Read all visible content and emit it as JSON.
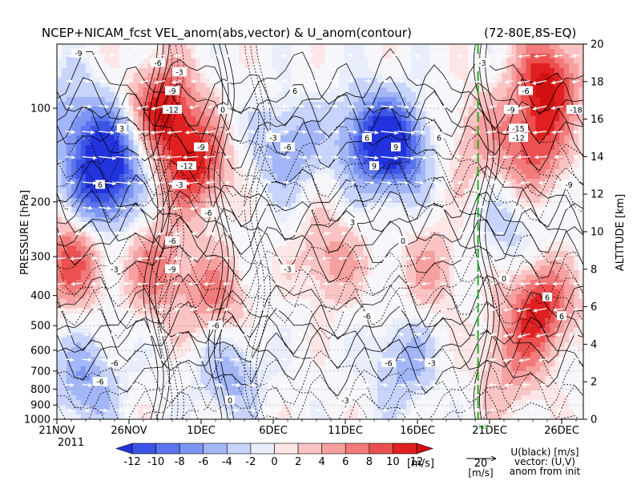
{
  "chart_data": {
    "type": "heatmap",
    "title": "NCEP+NICAM_fcst VEL_anom(abs,vector) & U_anom(contour)",
    "region": "(72-80E,8S-EQ)",
    "ylabel_left": "PRESSURE [hPa]",
    "ylabel_right": "ALTITUDE [km]",
    "x_ticks": [
      "21NOV",
      "26NOV",
      "1DEC",
      "6DEC",
      "11DEC",
      "16DEC",
      "21DEC",
      "26DEC"
    ],
    "x_year": "2011",
    "y_ticks_pressure": [
      "100",
      "200",
      "300",
      "400",
      "500",
      "600",
      "700",
      "800",
      "900",
      "1000"
    ],
    "y_ticks_altitude": [
      "0",
      "2",
      "4",
      "6",
      "8",
      "10",
      "12",
      "14",
      "16",
      "18",
      "20"
    ],
    "colorbar": {
      "ticks": [
        "-12",
        "-10",
        "-8",
        "-6",
        "-4",
        "-2",
        "0",
        "2",
        "4",
        "6",
        "8",
        "10",
        "12"
      ],
      "unit": "[m/s]",
      "colors": [
        "#2233dd",
        "#3c55e6",
        "#5c75ee",
        "#7d96f4",
        "#a3b6f8",
        "#c8d4fb",
        "#e9eefd",
        "#fde6e6",
        "#fbc4c4",
        "#f7a0a0",
        "#f27a7a",
        "#ec5050",
        "#e02020",
        "#d01010"
      ]
    },
    "init_marker": "init",
    "vector_legend": {
      "value": "20",
      "unit": "[m/s]"
    },
    "legend_notes": [
      "U(black) [m/s]",
      "vector: (U,V)",
      "anom from init"
    ],
    "fields": {
      "day_offset_of_x_ticks": [
        0,
        5,
        10,
        15,
        20,
        25,
        30,
        35
      ],
      "x_range_days": [
        0,
        36.5
      ],
      "altitude_range_km": [
        0,
        20
      ],
      "u_anom_blobs": [
        {
          "day": 3.5,
          "alt_km": 14.0,
          "value": -12
        },
        {
          "day": 3.0,
          "alt_km": 12.0,
          "value": -8
        },
        {
          "day": 1.0,
          "alt_km": 16.0,
          "value": -5
        },
        {
          "day": 7.5,
          "alt_km": 16.5,
          "value": 12
        },
        {
          "day": 9.5,
          "alt_km": 13.5,
          "value": 11
        },
        {
          "day": 7.0,
          "alt_km": 8.0,
          "value": 7
        },
        {
          "day": 11.0,
          "alt_km": 6.5,
          "value": 6
        },
        {
          "day": 1.0,
          "alt_km": 8.5,
          "value": 9
        },
        {
          "day": 2.0,
          "alt_km": 2.0,
          "value": -6
        },
        {
          "day": 12.0,
          "alt_km": 2.5,
          "value": -5
        },
        {
          "day": 16.0,
          "alt_km": 14.5,
          "value": -6
        },
        {
          "day": 23.5,
          "alt_km": 14.5,
          "value": -12
        },
        {
          "day": 21.5,
          "alt_km": 15.0,
          "value": -8
        },
        {
          "day": 19.0,
          "alt_km": 8.5,
          "value": 5
        },
        {
          "day": 26.0,
          "alt_km": 8.0,
          "value": 4
        },
        {
          "day": 24.0,
          "alt_km": 3.0,
          "value": -5
        },
        {
          "day": 29.0,
          "alt_km": 15.0,
          "value": 4
        },
        {
          "day": 34.0,
          "alt_km": 18.0,
          "value": 12
        },
        {
          "day": 33.0,
          "alt_km": 14.5,
          "value": 9
        },
        {
          "day": 33.5,
          "alt_km": 6.0,
          "value": 11
        },
        {
          "day": 31.5,
          "alt_km": 3.0,
          "value": 5
        },
        {
          "day": 31.5,
          "alt_km": 10.0,
          "value": -3
        }
      ],
      "contour_labels": [
        {
          "day": 1.5,
          "alt_km": 19.5,
          "text": "-9"
        },
        {
          "day": 4.5,
          "alt_km": 15.5,
          "text": "3"
        },
        {
          "day": 3.0,
          "alt_km": 12.5,
          "text": "6"
        },
        {
          "day": 8.5,
          "alt_km": 18.5,
          "text": "-3"
        },
        {
          "day": 7.0,
          "alt_km": 19.0,
          "text": "-6"
        },
        {
          "day": 8.0,
          "alt_km": 17.5,
          "text": "-9"
        },
        {
          "day": 8.0,
          "alt_km": 16.5,
          "text": "-12"
        },
        {
          "day": 10.0,
          "alt_km": 14.5,
          "text": "-9"
        },
        {
          "day": 9.0,
          "alt_km": 13.5,
          "text": "-12"
        },
        {
          "day": 8.5,
          "alt_km": 12.5,
          "text": "-3"
        },
        {
          "day": 10.5,
          "alt_km": 11.0,
          "text": "-6"
        },
        {
          "day": 8.0,
          "alt_km": 9.5,
          "text": "-6"
        },
        {
          "day": 8.0,
          "alt_km": 8.0,
          "text": "-9"
        },
        {
          "day": 11.0,
          "alt_km": 5.0,
          "text": "-6"
        },
        {
          "day": 4.0,
          "alt_km": 8.0,
          "text": "-3"
        },
        {
          "day": 4.0,
          "alt_km": 3.0,
          "text": "-6"
        },
        {
          "day": 3.0,
          "alt_km": 2.0,
          "text": "-6"
        },
        {
          "day": 12.0,
          "alt_km": 1.0,
          "text": "0"
        },
        {
          "day": 11.5,
          "alt_km": 16.5,
          "text": "0"
        },
        {
          "day": 15.0,
          "alt_km": 15.0,
          "text": "-3"
        },
        {
          "day": 16.0,
          "alt_km": 14.5,
          "text": "-6"
        },
        {
          "day": 16.5,
          "alt_km": 17.5,
          "text": "6"
        },
        {
          "day": 16.0,
          "alt_km": 8.0,
          "text": "-3"
        },
        {
          "day": 21.5,
          "alt_km": 15.0,
          "text": "6"
        },
        {
          "day": 22.0,
          "alt_km": 13.5,
          "text": "9"
        },
        {
          "day": 23.5,
          "alt_km": 14.5,
          "text": "9"
        },
        {
          "day": 26.5,
          "alt_km": 15.0,
          "text": "6"
        },
        {
          "day": 20.5,
          "alt_km": 10.5,
          "text": "3"
        },
        {
          "day": 24.0,
          "alt_km": 9.5,
          "text": "0"
        },
        {
          "day": 21.5,
          "alt_km": 5.5,
          "text": "-6"
        },
        {
          "day": 23.0,
          "alt_km": 3.0,
          "text": "-6"
        },
        {
          "day": 20.0,
          "alt_km": 1.0,
          "text": "-3"
        },
        {
          "day": 26.0,
          "alt_km": 3.0,
          "text": "-3"
        },
        {
          "day": 32.5,
          "alt_km": 17.5,
          "text": "-6"
        },
        {
          "day": 31.5,
          "alt_km": 16.5,
          "text": "-9"
        },
        {
          "day": 32.0,
          "alt_km": 15.5,
          "text": "-15"
        },
        {
          "day": 32.0,
          "alt_km": 15.0,
          "text": "-12"
        },
        {
          "day": 36.0,
          "alt_km": 16.5,
          "text": "-18"
        },
        {
          "day": 35.5,
          "alt_km": 12.5,
          "text": "-9"
        },
        {
          "day": 34.0,
          "alt_km": 6.5,
          "text": "6"
        },
        {
          "day": 35.0,
          "alt_km": 5.5,
          "text": "6"
        },
        {
          "day": 29.5,
          "alt_km": 19.0,
          "text": "-3"
        },
        {
          "day": 31.0,
          "alt_km": 7.5,
          "text": "0"
        }
      ],
      "init_line_day": 29.2
    }
  }
}
